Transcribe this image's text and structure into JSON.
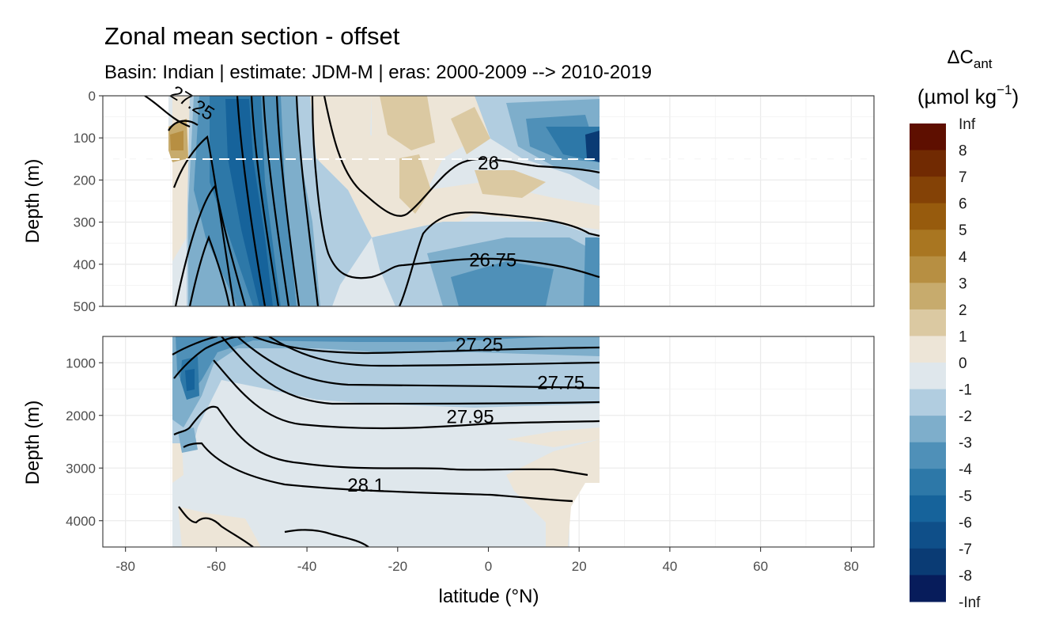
{
  "chart_data": {
    "type": "heatmap",
    "title": "Zonal mean section - offset",
    "subtitle": "Basin: Indian | estimate: JDM-M | eras: 2000-2009 --> 2010-2019",
    "xlabel": "latitude (°N)",
    "ylabel": "Depth (m)",
    "x_ticks": [
      "-80",
      "-60",
      "-40",
      "-20",
      "0",
      "20",
      "40",
      "60",
      "80"
    ],
    "xlim": [
      -85,
      85
    ],
    "data_lat_range": [
      -70,
      24
    ],
    "panels": [
      {
        "name": "upper",
        "ylim": [
          0,
          500
        ],
        "y_ticks": [
          "0",
          "100",
          "200",
          "300",
          "400",
          "500"
        ],
        "reference_line_depth": 150,
        "contour_labels": [
          {
            "text": "27.25",
            "lat": -66,
            "depth": 30
          },
          {
            "text": "26",
            "lat": 0,
            "depth": 175
          },
          {
            "text": "26.75",
            "lat": 1,
            "depth": 405
          }
        ]
      },
      {
        "name": "lower",
        "ylim": [
          500,
          4500
        ],
        "y_ticks": [
          "1000",
          "2000",
          "3000",
          "4000"
        ],
        "contour_labels": [
          {
            "text": "27.25",
            "lat": -2,
            "depth": 780
          },
          {
            "text": "27.75",
            "lat": 16,
            "depth": 1500
          },
          {
            "text": "27.95",
            "lat": -4,
            "depth": 2150
          },
          {
            "text": "28.1",
            "lat": -27,
            "depth": 3450
          }
        ]
      }
    ],
    "legend": {
      "title_main": "ΔC",
      "title_sub": "ant",
      "unit": "(µmol kg",
      "unit_sup": "−1",
      "unit_close": ")",
      "placement": "right",
      "labels": [
        "Inf",
        "8",
        "7",
        "6",
        "5",
        "4",
        "3",
        "2",
        "1",
        "0",
        "-1",
        "-2",
        "-3",
        "-4",
        "-5",
        "-6",
        "-7",
        "-8",
        "-Inf"
      ],
      "colors": [
        "#5e0f00",
        "#712a02",
        "#844206",
        "#975b0d",
        "#a97621",
        "#b78f42",
        "#c7ab6d",
        "#dbc9a2",
        "#ede5d7",
        "#dfe7ec",
        "#b1cde0",
        "#7eaecb",
        "#4f90b8",
        "#2d78a8",
        "#16639b",
        "#0f4f89",
        "#0a3b74",
        "#071c5b"
      ]
    },
    "grid": true
  }
}
